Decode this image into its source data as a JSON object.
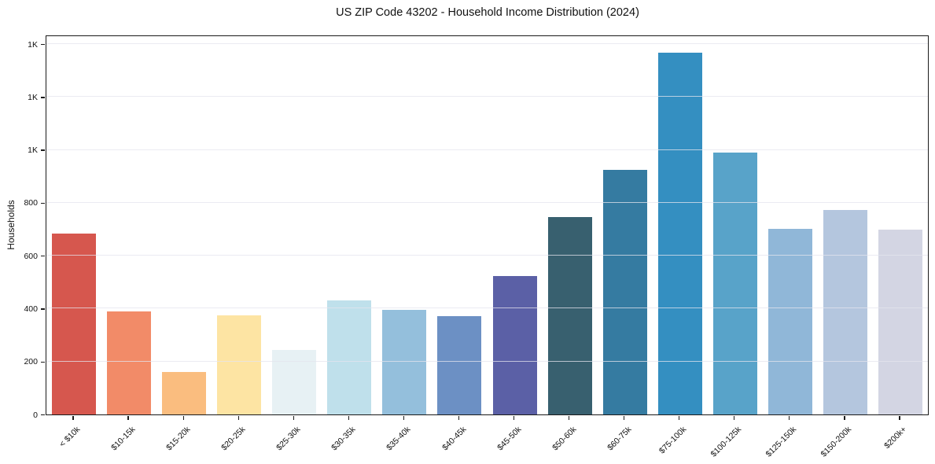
{
  "figure": {
    "background": "#ffffff",
    "spine_color": "#1a1a1a"
  },
  "chart_data": {
    "type": "bar",
    "title": "US ZIP Code 43202 - Household Income Distribution (2024)",
    "xlabel": "",
    "ylabel": "Households",
    "categories": [
      "< $10k",
      "$10-15k",
      "$15-20k",
      "$20-25k",
      "$25-30k",
      "$30-35k",
      "$35-40k",
      "$40-45k",
      "$45-50k",
      "$50-60k",
      "$60-75k",
      "$75-100k",
      "$100-125k",
      "$125-150k",
      "$150-200k",
      "$200k+"
    ],
    "values": [
      685,
      390,
      160,
      375,
      245,
      430,
      395,
      372,
      522,
      745,
      925,
      1368,
      990,
      703,
      772,
      700
    ],
    "bar_colors": [
      "#d6574e",
      "#f28b68",
      "#fabd7f",
      "#fde4a3",
      "#e7f1f4",
      "#bfe0eb",
      "#94bfdc",
      "#6c90c4",
      "#5b60a6",
      "#38606f",
      "#357ba1",
      "#348fc1",
      "#58a3c9",
      "#90b7d8",
      "#b4c6de",
      "#d3d5e3"
    ],
    "ylim": [
      0,
      1430
    ],
    "yticks": [
      {
        "value": 0,
        "label": "0"
      },
      {
        "value": 200,
        "label": "200"
      },
      {
        "value": 400,
        "label": "400"
      },
      {
        "value": 600,
        "label": "600"
      },
      {
        "value": 800,
        "label": "800"
      },
      {
        "value": 1000,
        "label": "1K"
      },
      {
        "value": 1200,
        "label": "1K"
      },
      {
        "value": 1400,
        "label": "1K"
      }
    ],
    "grid": "horizontal",
    "grid_color": "#e9e9ef",
    "legend": "none",
    "bar_width_fraction": 0.8
  }
}
